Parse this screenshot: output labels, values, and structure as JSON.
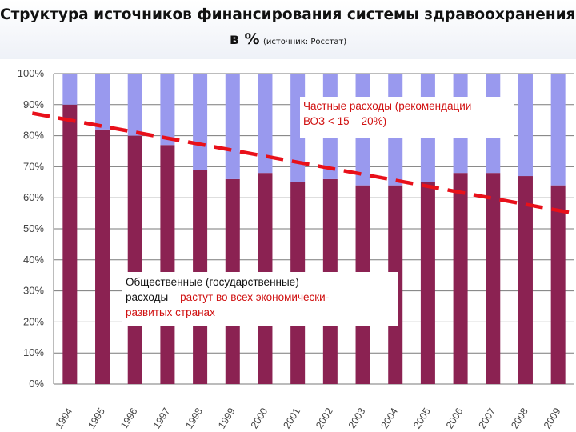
{
  "title": {
    "line1": "Структура источников финансирования системы здравоохранения,",
    "line2_main": "в %",
    "line2_source": "(источник: Росстат)"
  },
  "annotations": {
    "private": {
      "line1": "Частные расходы (рекомендации",
      "line2": "ВОЗ < 15 – 20%)"
    },
    "public": {
      "line1": "Общественные (государственные)",
      "line2_prefix": "расходы",
      "line2_dash": " – ",
      "line2_red": "растут во всех экономически-",
      "line3_red": "развитых странах"
    }
  },
  "colors": {
    "public": "#8b2252",
    "private": "#9999ee",
    "trend": "#e8101a",
    "annotation_red": "#d01010"
  },
  "chart_data": {
    "type": "bar",
    "stacked": true,
    "percent": true,
    "categories": [
      "1994",
      "1995",
      "1996",
      "1997",
      "1998",
      "1999",
      "2000",
      "2001",
      "2002",
      "2003",
      "2004",
      "2005",
      "2006",
      "2007",
      "2008",
      "2009"
    ],
    "series": [
      {
        "values": [
          90,
          82,
          80,
          77,
          69,
          66,
          68,
          65,
          66,
          64,
          64,
          65,
          68,
          68,
          67,
          64
        ]
      },
      {
        "values": [
          10,
          18,
          20,
          23,
          31,
          34,
          32,
          35,
          34,
          36,
          36,
          35,
          32,
          32,
          33,
          36
        ]
      }
    ],
    "yticks": [
      "0%",
      "10%",
      "20%",
      "30%",
      "40%",
      "50%",
      "60%",
      "70%",
      "80%",
      "90%",
      "100%"
    ],
    "ylim": [
      0,
      100
    ],
    "grid": true,
    "trend_line": {
      "style": "dashed",
      "from": {
        "category": "1994",
        "value": 87.5
      },
      "to": {
        "category": "2009",
        "value": 56
      }
    }
  }
}
